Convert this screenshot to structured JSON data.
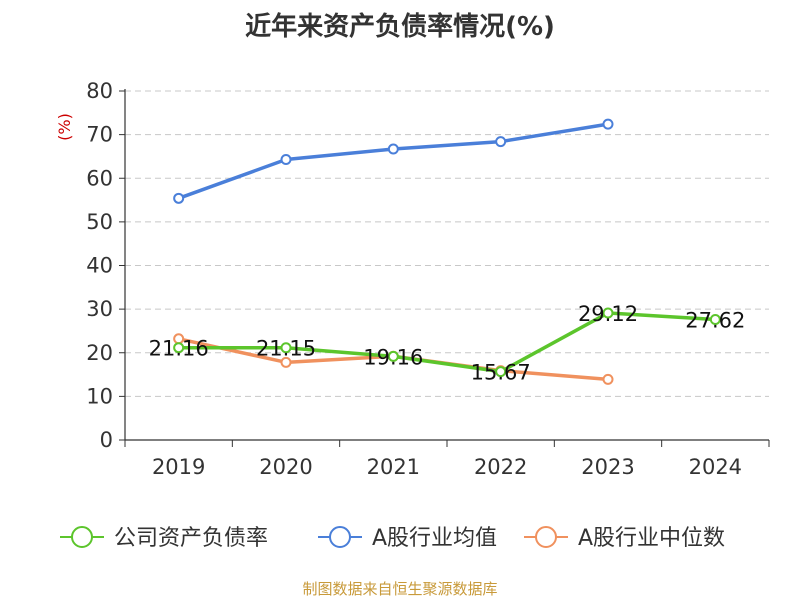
{
  "chart_data": {
    "type": "line",
    "title": "近年来资产负债率情况(%)",
    "ylabel": "(%)",
    "xlabel": "",
    "categories": [
      "2019",
      "2020",
      "2021",
      "2022",
      "2023",
      "2024"
    ],
    "ylim": [
      0,
      80
    ],
    "yticks": [
      0,
      10,
      20,
      30,
      40,
      50,
      60,
      70,
      80
    ],
    "grid": true,
    "legend_position": "bottom",
    "series": [
      {
        "name": "公司资产负债率",
        "color": "#5cc52c",
        "values": [
          21.16,
          21.15,
          19.16,
          15.67,
          29.12,
          27.62
        ],
        "labels": [
          "21.16",
          "21.15",
          "19.16",
          "15.67",
          "29.12",
          "27.62"
        ]
      },
      {
        "name": "A股行业均值",
        "color": "#4a7fd9",
        "values": [
          55.4,
          64.3,
          66.7,
          68.4,
          72.4,
          null
        ],
        "labels": []
      },
      {
        "name": "A股行业中位数",
        "color": "#f0915e",
        "values": [
          23.2,
          17.8,
          19.2,
          15.9,
          13.9,
          null
        ],
        "labels": []
      }
    ]
  },
  "source": "制图数据来自恒生聚源数据库"
}
